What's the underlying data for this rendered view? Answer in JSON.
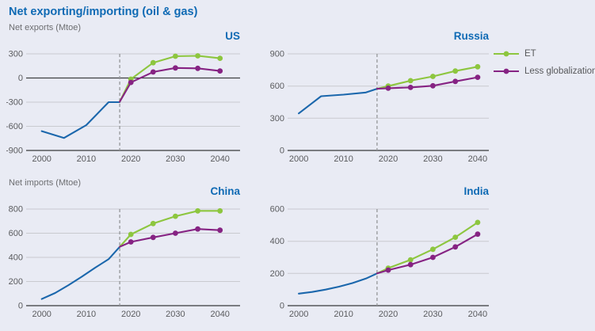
{
  "header": {
    "title": "Net exporting/importing (oil & gas)",
    "row1_axis_label": "Net exports (Mtoe)",
    "row2_axis_label": "Net imports (Mtoe)"
  },
  "colors": {
    "accent_blue": "#0f6ab4",
    "historical_line": "#1b67ac",
    "et_green": "#8dc63f",
    "less_globalization_purple": "#862383",
    "grid": "#c9cacf",
    "axis": "#56575a",
    "zero_line": "#3f4042",
    "dashed_line": "#95979a",
    "tick_text": "#5a5b5e",
    "background": "#e9ebf4"
  },
  "legend": [
    {
      "label": "ET",
      "color": "#8dc63f"
    },
    {
      "label": "Less globalization",
      "color": "#862383"
    }
  ],
  "chart_data": [
    {
      "type": "line",
      "title": "US",
      "ylabel": "Net exports (Mtoe)",
      "xlim": [
        1996.5,
        2044.5
      ],
      "ylim": [
        -900,
        300
      ],
      "yticks": [
        300,
        0,
        -300,
        -600,
        -900
      ],
      "xticks": [
        2000,
        2010,
        2020,
        2030,
        2040
      ],
      "emphasized_y": 0,
      "dashed_x": 2017.5,
      "grid": true,
      "series": [
        {
          "name": "Historical",
          "color": "#1b67ac",
          "markers": false,
          "x": [
            2000,
            2005,
            2010,
            2015,
            2017.5
          ],
          "y": [
            -660,
            -745,
            -585,
            -300,
            -300
          ]
        },
        {
          "name": "ET",
          "color": "#8dc63f",
          "markers": true,
          "marker_from": 2020,
          "x": [
            2017.5,
            2020,
            2025,
            2030,
            2035,
            2040
          ],
          "y": [
            -295,
            -15,
            190,
            270,
            275,
            245
          ]
        },
        {
          "name": "Less globalization",
          "color": "#862383",
          "markers": true,
          "marker_from": 2020,
          "x": [
            2017.5,
            2020,
            2025,
            2030,
            2035,
            2040
          ],
          "y": [
            -295,
            -55,
            75,
            125,
            120,
            88
          ]
        }
      ]
    },
    {
      "type": "line",
      "title": "Russia",
      "ylabel": "Net exports (Mtoe)",
      "xlim": [
        1997.5,
        2042.5
      ],
      "ylim": [
        0,
        900
      ],
      "yticks": [
        900,
        600,
        300,
        0
      ],
      "xticks": [
        2000,
        2010,
        2020,
        2030,
        2040
      ],
      "emphasized_y": null,
      "dashed_x": 2017.5,
      "grid": true,
      "series": [
        {
          "name": "Historical",
          "color": "#1b67ac",
          "markers": false,
          "x": [
            2000,
            2005,
            2010,
            2015,
            2017.5
          ],
          "y": [
            345,
            505,
            520,
            540,
            575
          ]
        },
        {
          "name": "ET",
          "color": "#8dc63f",
          "markers": true,
          "marker_from": 2020,
          "x": [
            2017.5,
            2020,
            2025,
            2030,
            2035,
            2040
          ],
          "y": [
            575,
            600,
            650,
            690,
            740,
            780
          ]
        },
        {
          "name": "Less globalization",
          "color": "#862383",
          "markers": true,
          "marker_from": 2020,
          "x": [
            2017.5,
            2020,
            2025,
            2030,
            2035,
            2040
          ],
          "y": [
            575,
            580,
            587,
            603,
            643,
            682
          ]
        }
      ]
    },
    {
      "type": "line",
      "title": "China",
      "ylabel": "Net imports (Mtoe)",
      "xlim": [
        1996.5,
        2044.5
      ],
      "ylim": [
        0,
        800
      ],
      "yticks": [
        800,
        600,
        400,
        200,
        0
      ],
      "xticks": [
        2000,
        2010,
        2020,
        2030,
        2040
      ],
      "emphasized_y": null,
      "dashed_x": 2017.5,
      "grid": true,
      "series": [
        {
          "name": "Historical",
          "color": "#1b67ac",
          "markers": false,
          "x": [
            2000,
            2003,
            2006,
            2009,
            2012,
            2015,
            2017.5
          ],
          "y": [
            55,
            105,
            170,
            240,
            315,
            385,
            487
          ]
        },
        {
          "name": "ET",
          "color": "#8dc63f",
          "markers": true,
          "marker_from": 2020,
          "x": [
            2017.5,
            2020,
            2025,
            2030,
            2035,
            2040
          ],
          "y": [
            487,
            590,
            680,
            740,
            785,
            785
          ]
        },
        {
          "name": "Less globalization",
          "color": "#862383",
          "markers": true,
          "marker_from": 2020,
          "x": [
            2017.5,
            2020,
            2025,
            2030,
            2035,
            2040
          ],
          "y": [
            487,
            528,
            565,
            600,
            635,
            625
          ]
        }
      ]
    },
    {
      "type": "line",
      "title": "India",
      "ylabel": "Net imports (Mtoe)",
      "xlim": [
        1997.5,
        2042.5
      ],
      "ylim": [
        0,
        600
      ],
      "yticks": [
        600,
        400,
        200,
        0
      ],
      "xticks": [
        2000,
        2010,
        2020,
        2030,
        2040
      ],
      "emphasized_y": null,
      "dashed_x": 2017.5,
      "grid": true,
      "series": [
        {
          "name": "Historical",
          "color": "#1b67ac",
          "markers": false,
          "x": [
            2000,
            2003,
            2006,
            2009,
            2012,
            2015,
            2017.5
          ],
          "y": [
            75,
            85,
            100,
            118,
            140,
            168,
            200
          ]
        },
        {
          "name": "ET",
          "color": "#8dc63f",
          "markers": true,
          "marker_from": 2020,
          "x": [
            2017.5,
            2020,
            2025,
            2030,
            2035,
            2040
          ],
          "y": [
            200,
            233,
            285,
            350,
            425,
            517
          ]
        },
        {
          "name": "Less globalization",
          "color": "#862383",
          "markers": true,
          "marker_from": 2020,
          "x": [
            2017.5,
            2020,
            2025,
            2030,
            2035,
            2040
          ],
          "y": [
            200,
            221,
            255,
            300,
            365,
            444
          ]
        }
      ]
    }
  ]
}
